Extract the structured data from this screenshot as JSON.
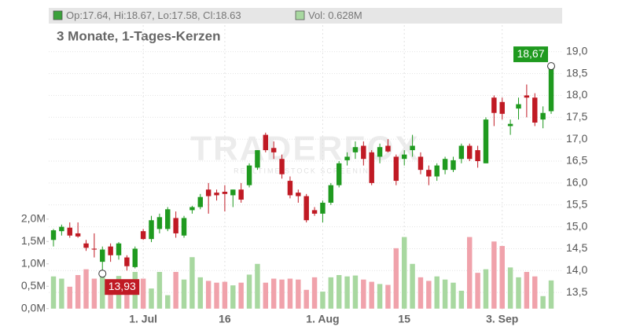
{
  "chart_data": {
    "type": "candlestick",
    "subtitle": "3 Monate, 1-Tages-Kerzen",
    "legend": [
      {
        "label": "Op:17.64, Hi:18.67, Lo:17.58, Cl:18.63",
        "color": "#3aa13a"
      },
      {
        "label": "Vol: 0.628M",
        "color": "#a8d8a0"
      }
    ],
    "watermark": "TRADERFOX",
    "watermark_sub": "REALTIME STOCK SCREENING",
    "max_label": "18,67",
    "min_label": "13,93",
    "categories": [
      null,
      null,
      null,
      null,
      null,
      null,
      null,
      null,
      null,
      null,
      null,
      "1. Jul",
      null,
      null,
      null,
      null,
      null,
      null,
      null,
      null,
      null,
      "16",
      null,
      null,
      null,
      null,
      null,
      null,
      null,
      null,
      null,
      null,
      null,
      "1. Aug",
      null,
      null,
      null,
      null,
      null,
      null,
      null,
      null,
      null,
      "15",
      null,
      null,
      null,
      null,
      null,
      null,
      null,
      null,
      null,
      null,
      null,
      "3. Sep",
      null,
      null,
      null,
      null,
      null,
      null
    ],
    "open": [
      14.7,
      14.9,
      14.98,
      14.85,
      14.62,
      14.5,
      14.2,
      14.55,
      14.35,
      14.3,
      14.08,
      14.9,
      14.72,
      14.95,
      14.95,
      15.2,
      14.8,
      15.38,
      15.45,
      15.85,
      15.78,
      15.8,
      15.72,
      15.85,
      15.95,
      16.35,
      17.1,
      16.8,
      16.55,
      16.05,
      15.78,
      15.7,
      15.38,
      15.3,
      15.55,
      15.95,
      16.52,
      16.7,
      16.85,
      16.7,
      16.6,
      16.85,
      16.6,
      16.55,
      16.75,
      16.6,
      16.3,
      16.15,
      16.3,
      16.3,
      16.55,
      16.85,
      16.75,
      16.45,
      17.95,
      17.85,
      17.3,
      17.7,
      18.0,
      17.95,
      17.45,
      17.64
    ],
    "high": [
      14.95,
      15.05,
      15.1,
      15.1,
      14.7,
      14.85,
      14.55,
      14.62,
      14.65,
      14.35,
      14.55,
      14.95,
      15.25,
      15.3,
      15.45,
      15.35,
      15.25,
      15.48,
      15.75,
      16.0,
      15.85,
      15.95,
      15.85,
      16.0,
      16.45,
      16.75,
      17.15,
      16.95,
      16.65,
      16.15,
      15.85,
      15.75,
      15.45,
      15.6,
      16.0,
      16.5,
      16.7,
      16.95,
      16.95,
      16.75,
      16.9,
      17.0,
      16.65,
      16.75,
      17.1,
      16.7,
      16.4,
      16.45,
      16.6,
      16.6,
      16.9,
      16.9,
      16.85,
      17.5,
      18.0,
      17.95,
      17.45,
      17.95,
      18.25,
      18.05,
      17.75,
      18.67
    ],
    "low": [
      14.55,
      14.8,
      14.75,
      14.75,
      14.45,
      14.3,
      13.93,
      14.2,
      14.25,
      14.0,
      14.05,
      14.7,
      14.65,
      14.85,
      14.9,
      14.75,
      14.75,
      15.3,
      15.4,
      15.3,
      15.6,
      15.35,
      15.45,
      15.55,
      15.9,
      16.3,
      16.7,
      16.55,
      16.1,
      15.65,
      15.55,
      15.1,
      15.25,
      15.1,
      15.5,
      15.9,
      16.4,
      16.55,
      16.4,
      15.95,
      16.45,
      16.7,
      15.95,
      16.4,
      16.6,
      16.2,
      15.95,
      16.05,
      16.2,
      16.25,
      16.45,
      16.5,
      16.35,
      16.45,
      17.3,
      17.45,
      17.1,
      17.45,
      17.5,
      17.3,
      17.25,
      17.58
    ],
    "close": [
      14.92,
      15.0,
      14.8,
      14.78,
      14.52,
      14.48,
      14.48,
      14.35,
      14.62,
      14.1,
      14.5,
      14.72,
      15.15,
      15.22,
      15.4,
      14.85,
      15.2,
      15.45,
      15.68,
      15.7,
      15.72,
      15.75,
      15.85,
      15.62,
      16.4,
      16.75,
      16.75,
      16.7,
      16.2,
      15.72,
      15.7,
      15.15,
      15.3,
      15.55,
      15.95,
      16.45,
      16.6,
      16.82,
      16.55,
      16.0,
      16.82,
      16.72,
      16.05,
      16.65,
      16.85,
      16.3,
      16.15,
      16.4,
      16.55,
      16.52,
      16.85,
      16.55,
      16.5,
      17.45,
      17.6,
      17.58,
      17.35,
      17.8,
      17.95,
      17.38,
      17.6,
      18.63
    ],
    "volume": [
      0.72,
      0.67,
      0.49,
      0.75,
      0.88,
      0.67,
      0.76,
      0.55,
      0.73,
      0.45,
      0.82,
      0.67,
      0.45,
      0.82,
      0.3,
      0.82,
      0.65,
      1.15,
      0.7,
      0.62,
      0.58,
      0.6,
      0.52,
      0.58,
      0.76,
      1.0,
      0.58,
      0.67,
      0.65,
      0.67,
      0.65,
      0.42,
      0.7,
      0.38,
      0.7,
      0.75,
      0.72,
      0.74,
      0.65,
      0.6,
      0.55,
      0.53,
      1.35,
      1.6,
      1.0,
      0.7,
      0.62,
      0.72,
      0.65,
      0.58,
      0.4,
      1.6,
      0.8,
      0.88,
      1.5,
      1.4,
      0.92,
      0.7,
      0.82,
      0.72,
      0.28,
      0.63
    ],
    "up_color": "#1f9a1f",
    "down_color": "#c01a24",
    "volume_up_color": "#a8d8a0",
    "volume_down_color": "#f0a2ab",
    "ylim": [
      13.09,
      20.0
    ],
    "yticks": [
      {
        "value": 13.5,
        "label": "13,5"
      },
      {
        "value": 14,
        "label": "14,0"
      },
      {
        "value": 14.5,
        "label": "14,5"
      },
      {
        "value": 15,
        "label": "15,0"
      },
      {
        "value": 15.5,
        "label": "15,5"
      },
      {
        "value": 16,
        "label": "16,0"
      },
      {
        "value": 16.5,
        "label": "16,5"
      },
      {
        "value": 17,
        "label": "17,0"
      },
      {
        "value": 17.5,
        "label": "17,5"
      },
      {
        "value": 18,
        "label": "18,0"
      },
      {
        "value": 18.5,
        "label": "18,5"
      },
      {
        "value": 19,
        "label": "19,0"
      }
    ],
    "y2lim": [
      -0.04,
      6.72
    ],
    "y2ticks": [
      {
        "value": 0,
        "label": "0,0M"
      },
      {
        "value": 0.5,
        "label": "0,5M"
      },
      {
        "value": 1,
        "label": "1,0M"
      },
      {
        "value": 1.5,
        "label": "1,5M"
      },
      {
        "value": 2,
        "label": "2,0M"
      }
    ],
    "grid": true
  }
}
